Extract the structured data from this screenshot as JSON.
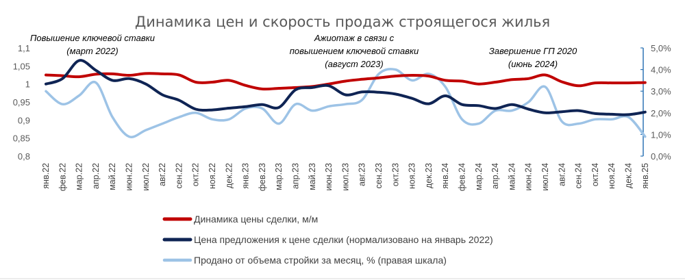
{
  "chart_data": {
    "type": "line",
    "title": "Динамика цен и скорость продаж строящегося жилья",
    "categories": [
      "янв.22",
      "фев.22",
      "мар.22",
      "апр.22",
      "май.22",
      "июн.22",
      "июл.22",
      "авг.22",
      "сен.22",
      "окт.22",
      "ноя.22",
      "дек.22",
      "янв.23",
      "фев.23",
      "мар.23",
      "апр.23",
      "май.23",
      "июн.23",
      "июл.23",
      "авг.23",
      "сен.23",
      "окт.23",
      "ноя.23",
      "дек.23",
      "янв.24",
      "фев.24",
      "мар.24",
      "апр.24",
      "май.24",
      "июн.24",
      "июл.24",
      "авг.24",
      "сен.24",
      "окт.24",
      "ноя.24",
      "дек.24",
      "янв.25"
    ],
    "left_axis": {
      "ylim": [
        0.8,
        1.1
      ],
      "ticks": [
        "0,8",
        "0,85",
        "0,9",
        "0,95",
        "1",
        "1,05",
        "1,1"
      ]
    },
    "right_axis": {
      "ylim": [
        0,
        5
      ],
      "ticks": [
        "0,0%",
        "1,0%",
        "2,0%",
        "3,0%",
        "4,0%",
        "5,0%"
      ],
      "color": "#2E75B6"
    },
    "series": [
      {
        "name": "Динамика цены сделки, м/м",
        "axis": "left",
        "color": "#C00000",
        "values": [
          1.025,
          1.023,
          1.02,
          1.027,
          1.028,
          1.024,
          1.029,
          1.028,
          1.025,
          1.005,
          1.005,
          1.01,
          0.996,
          0.986,
          0.988,
          0.99,
          0.993,
          1.0,
          1.008,
          1.013,
          1.017,
          1.022,
          1.024,
          1.022,
          1.01,
          1.008,
          1.0,
          1.005,
          1.012,
          1.015,
          1.025,
          1.006,
          0.995,
          1.003,
          1.003,
          1.003,
          1.004
        ]
      },
      {
        "name": "Цена предложения к цене сделки (нормализовано на январь 2022)",
        "axis": "left",
        "color": "#0F2454",
        "values": [
          1.0,
          1.015,
          1.065,
          1.038,
          1.01,
          1.015,
          1.0,
          0.97,
          0.955,
          0.93,
          0.928,
          0.933,
          0.937,
          0.943,
          0.935,
          0.984,
          0.99,
          0.995,
          0.97,
          0.978,
          0.977,
          0.972,
          0.96,
          0.945,
          0.967,
          0.943,
          0.94,
          0.932,
          0.943,
          0.93,
          0.92,
          0.923,
          0.926,
          0.918,
          0.916,
          0.915,
          0.922
        ]
      },
      {
        "name": "Продано от объема стройки за месяц, % (правая шкала)",
        "axis": "right",
        "color": "#9DC3E6",
        "values": [
          3.0,
          2.4,
          2.8,
          3.4,
          1.8,
          0.9,
          1.2,
          1.5,
          1.8,
          2.0,
          1.7,
          1.7,
          2.2,
          2.2,
          1.5,
          2.4,
          2.1,
          2.3,
          2.4,
          2.6,
          3.8,
          4.0,
          3.5,
          3.8,
          3.2,
          1.7,
          1.5,
          2.1,
          2.1,
          2.5,
          3.2,
          1.6,
          1.5,
          1.7,
          1.7,
          1.8,
          0.9
        ]
      }
    ],
    "annotations": [
      {
        "line1": "Повышение ключевой ставки",
        "line2": "(март 2022)"
      },
      {
        "line1": "Ажиотаж в связи с",
        "line2": "повышением ключевой ставки",
        "line3": "(август 2023)"
      },
      {
        "line1": "Завершение ГП 2020",
        "line2": "(июнь 2024)"
      }
    ],
    "grid": false,
    "legend_position": "bottom"
  }
}
